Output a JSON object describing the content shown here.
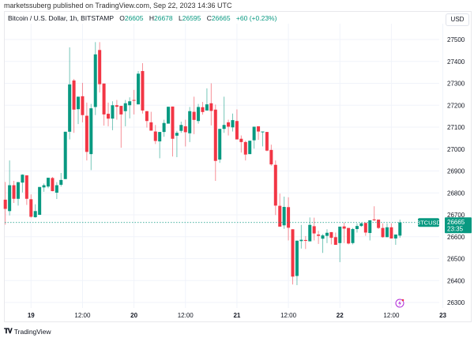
{
  "header": {
    "published": "marketssuberg published on TradingView.com, Sep 22, 2023 14:36 UTC"
  },
  "legend": {
    "symbol": "Bitcoin / U.S. Dollar, 1h, BITSTAMP",
    "o_label": "O",
    "o": "26605",
    "h_label": "H",
    "h": "26678",
    "l_label": "L",
    "l": "26595",
    "c_label": "C",
    "c": "26665",
    "change": "+60 (+0.23%)"
  },
  "currency_button": "USD",
  "price_tag": {
    "symbol": "BTCUSD",
    "price": "26665",
    "countdown": "23:35"
  },
  "footer": {
    "brand": "TradingView"
  },
  "colors": {
    "up": "#089981",
    "down": "#f23645",
    "grid": "#f0f3fa",
    "accent": "#b02ad8"
  },
  "icons": {
    "event": "lightning-icon",
    "logo": "tradingview-logo"
  },
  "chart_data": {
    "type": "candlestick",
    "title": "",
    "interval": "1h",
    "y_ticks": [
      "27500",
      "27400",
      "27300",
      "27200",
      "27100",
      "27000",
      "26900",
      "26800",
      "26700",
      "26600",
      "26500",
      "26400",
      "26300"
    ],
    "x_ticks": [
      {
        "label": "19",
        "bold": true
      },
      {
        "label": "12:00",
        "bold": false
      },
      {
        "label": "20",
        "bold": true
      },
      {
        "label": "12:00",
        "bold": false
      },
      {
        "label": "21",
        "bold": true
      },
      {
        "label": "12:00",
        "bold": false
      },
      {
        "label": "22",
        "bold": true
      },
      {
        "label": "12:00",
        "bold": false
      },
      {
        "label": "23",
        "bold": true
      }
    ],
    "ylim": [
      26270,
      27580
    ],
    "grid": true,
    "last_price": 26665,
    "columns": [
      "time",
      "open",
      "high",
      "low",
      "close"
    ],
    "candles": [
      [
        "2023-09-18 18:00",
        26769,
        26850,
        26655,
        26727
      ],
      [
        "2023-09-18 19:00",
        26717,
        26948,
        26697,
        26835
      ],
      [
        "2023-09-18 20:00",
        26835,
        26855,
        26754,
        26773
      ],
      [
        "2023-09-18 21:00",
        26773,
        26849,
        26742,
        26849
      ],
      [
        "2023-09-18 22:00",
        26847,
        26885,
        26802,
        26883
      ],
      [
        "2023-09-18 23:00",
        26880,
        26880,
        26745,
        26773
      ],
      [
        "2023-09-19 00:00",
        26771,
        26793,
        26687,
        26691
      ],
      [
        "2023-09-19 01:00",
        26689,
        26748,
        26687,
        26717
      ],
      [
        "2023-09-19 02:00",
        26700,
        26827,
        26699,
        26827
      ],
      [
        "2023-09-19 03:00",
        26825,
        26843,
        26805,
        26835
      ],
      [
        "2023-09-19 04:00",
        26829,
        26869,
        26821,
        26869
      ],
      [
        "2023-09-19 05:00",
        26868,
        26873,
        26807,
        26808
      ],
      [
        "2023-09-19 06:00",
        26801,
        26849,
        26772,
        26835
      ],
      [
        "2023-09-19 07:00",
        26837,
        26891,
        26829,
        26859
      ],
      [
        "2023-09-19 08:00",
        26863,
        27079,
        26863,
        27079
      ],
      [
        "2023-09-19 09:00",
        27079,
        27464,
        27044,
        27295
      ],
      [
        "2023-09-19 10:00",
        27313,
        27320,
        27074,
        27180
      ],
      [
        "2023-09-19 11:00",
        27182,
        27239,
        27114,
        27239
      ],
      [
        "2023-09-19 12:00",
        27241,
        27302,
        27122,
        27155
      ],
      [
        "2023-09-19 13:00",
        27152,
        27212,
        26948,
        26987
      ],
      [
        "2023-09-19 14:00",
        26977,
        27206,
        26904,
        27186
      ],
      [
        "2023-09-19 15:00",
        27192,
        27488,
        27155,
        27432
      ],
      [
        "2023-09-19 16:00",
        27452,
        27488,
        27258,
        27296
      ],
      [
        "2023-09-19 17:00",
        27299,
        27299,
        27107,
        27158
      ],
      [
        "2023-09-19 18:00",
        27161,
        27212,
        27104,
        27139
      ],
      [
        "2023-09-19 19:00",
        27139,
        27218,
        27086,
        27200
      ],
      [
        "2023-09-19 20:00",
        27200,
        27224,
        27134,
        27193
      ],
      [
        "2023-09-19 21:00",
        27197,
        27197,
        27006,
        27158
      ],
      [
        "2023-09-19 22:00",
        27173,
        27224,
        27104,
        27209
      ],
      [
        "2023-09-19 23:00",
        27200,
        27236,
        27140,
        27218
      ],
      [
        "2023-09-20 00:00",
        27224,
        27270,
        27158,
        27221
      ],
      [
        "2023-09-20 01:00",
        27204,
        27356,
        27204,
        27344
      ],
      [
        "2023-09-20 02:00",
        27356,
        27392,
        27162,
        27176
      ],
      [
        "2023-09-20 03:00",
        27173,
        27173,
        27098,
        27128
      ],
      [
        "2023-09-20 04:00",
        27122,
        27170,
        27084,
        27084
      ],
      [
        "2023-09-20 05:00",
        27080,
        27110,
        27023,
        27037
      ],
      [
        "2023-09-20 06:00",
        27035,
        27078,
        26958,
        27078
      ],
      [
        "2023-09-20 07:00",
        27078,
        27134,
        27056,
        27119
      ],
      [
        "2023-09-20 08:00",
        27116,
        27193,
        27116,
        27193
      ],
      [
        "2023-09-20 09:00",
        27194,
        27194,
        26966,
        27047
      ],
      [
        "2023-09-20 10:00",
        27061,
        27083,
        26963,
        27074
      ],
      [
        "2023-09-20 11:00",
        27083,
        27125,
        27074,
        27110
      ],
      [
        "2023-09-20 12:00",
        27104,
        27134,
        27012,
        27077
      ],
      [
        "2023-09-20 13:00",
        27072,
        27192,
        27032,
        27173
      ],
      [
        "2023-09-20 14:00",
        27170,
        27239,
        27068,
        27133
      ],
      [
        "2023-09-20 15:00",
        27128,
        27206,
        27116,
        27192
      ],
      [
        "2023-09-20 16:00",
        27191,
        27215,
        27157,
        27169
      ],
      [
        "2023-09-20 17:00",
        27176,
        27277,
        27176,
        27204
      ],
      [
        "2023-09-20 18:00",
        27209,
        27300,
        27108,
        27174
      ],
      [
        "2023-09-20 19:00",
        27180,
        27203,
        26855,
        26946
      ],
      [
        "2023-09-20 20:00",
        26952,
        27092,
        26937,
        27092
      ],
      [
        "2023-09-20 21:00",
        27092,
        27239,
        27074,
        27110
      ],
      [
        "2023-09-20 22:00",
        27122,
        27134,
        27062,
        27102
      ],
      [
        "2023-09-20 23:00",
        27099,
        27162,
        27080,
        27132
      ],
      [
        "2023-09-21 00:00",
        27128,
        27181,
        27044,
        27044
      ],
      [
        "2023-09-21 01:00",
        27047,
        27062,
        26984,
        27032
      ],
      [
        "2023-09-21 02:00",
        27032,
        27038,
        26948,
        26975
      ],
      [
        "2023-09-21 03:00",
        26977,
        27038,
        26977,
        27038
      ],
      [
        "2023-09-21 04:00",
        27040,
        27102,
        27002,
        27102
      ],
      [
        "2023-09-21 05:00",
        27104,
        27104,
        27042,
        27080
      ],
      [
        "2023-09-21 06:00",
        27077,
        27080,
        27012,
        27080
      ],
      [
        "2023-09-21 07:00",
        27078,
        27078,
        26990,
        26993
      ],
      [
        "2023-09-21 08:00",
        26996,
        27020,
        26924,
        26930
      ],
      [
        "2023-09-21 09:00",
        26928,
        26948,
        26699,
        26742
      ],
      [
        "2023-09-21 10:00",
        26741,
        26797,
        26646,
        26646
      ],
      [
        "2023-09-21 11:00",
        26652,
        26783,
        26636,
        26736
      ],
      [
        "2023-09-21 12:00",
        26735,
        26780,
        26583,
        26641
      ],
      [
        "2023-09-21 13:00",
        26634,
        26634,
        26382,
        26418
      ],
      [
        "2023-09-21 14:00",
        26421,
        26582,
        26379,
        26582
      ],
      [
        "2023-09-21 15:00",
        26580,
        26654,
        26546,
        26586
      ],
      [
        "2023-09-21 16:00",
        26585,
        26603,
        26544,
        26581
      ],
      [
        "2023-09-21 17:00",
        26579,
        26688,
        26579,
        26654
      ],
      [
        "2023-09-21 18:00",
        26648,
        26687,
        26583,
        26615
      ],
      [
        "2023-09-21 19:00",
        26610,
        26627,
        26567,
        26604
      ],
      [
        "2023-09-21 20:00",
        26591,
        26612,
        26526,
        26606
      ],
      [
        "2023-09-21 21:00",
        26604,
        26634,
        26571,
        26618
      ],
      [
        "2023-09-21 22:00",
        26621,
        26621,
        26565,
        26595
      ],
      [
        "2023-09-21 23:00",
        26598,
        26619,
        26563,
        26563
      ],
      [
        "2023-09-22 00:00",
        26571,
        26646,
        26484,
        26646
      ],
      [
        "2023-09-22 01:00",
        26647,
        26664,
        26571,
        26637
      ],
      [
        "2023-09-22 02:00",
        26640,
        26640,
        26565,
        26569
      ],
      [
        "2023-09-22 03:00",
        26571,
        26640,
        26565,
        26635
      ],
      [
        "2023-09-22 04:00",
        26635,
        26661,
        26619,
        26649
      ],
      [
        "2023-09-22 05:00",
        26649,
        26664,
        26645,
        26661
      ],
      [
        "2023-09-22 06:00",
        26663,
        26663,
        26604,
        26619
      ],
      [
        "2023-09-22 07:00",
        26617,
        26675,
        26583,
        26675
      ],
      [
        "2023-09-22 08:00",
        26679,
        26739,
        26672,
        26675
      ],
      [
        "2023-09-22 09:00",
        26678,
        26678,
        26635,
        26640
      ],
      [
        "2023-09-22 10:00",
        26640,
        26661,
        26595,
        26598
      ],
      [
        "2023-09-22 11:00",
        26598,
        26661,
        26598,
        26643
      ],
      [
        "2023-09-22 12:00",
        26643,
        26661,
        26592,
        26592
      ],
      [
        "2023-09-22 13:00",
        26592,
        26610,
        26563,
        26610
      ],
      [
        "2023-09-22 14:00",
        26605,
        26678,
        26595,
        26665
      ]
    ]
  }
}
